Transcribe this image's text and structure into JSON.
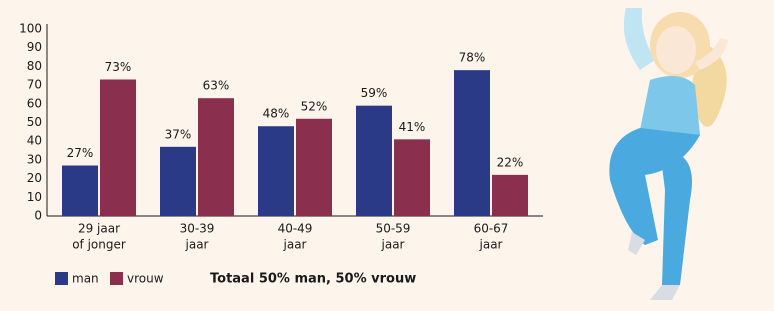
{
  "chart_data": {
    "type": "bar",
    "categories": [
      [
        "29 jaar",
        "of jonger"
      ],
      [
        "30-39",
        "jaar"
      ],
      [
        "40-49",
        "jaar"
      ],
      [
        "50-59",
        "jaar"
      ],
      [
        "60-67",
        "jaar"
      ]
    ],
    "series": [
      {
        "name": "man",
        "color": "#2b3a86",
        "values": [
          27,
          37,
          48,
          59,
          78
        ],
        "value_labels": [
          "27%",
          "37%",
          "48%",
          "59%",
          "78%"
        ]
      },
      {
        "name": "vrouw",
        "color": "#8b2f4e",
        "values": [
          73,
          63,
          52,
          41,
          22
        ],
        "value_labels": [
          "73%",
          "63%",
          "52%",
          "41%",
          "22%"
        ]
      }
    ],
    "ylim": [
      0,
      100
    ],
    "yticks": [
      0,
      10,
      20,
      30,
      40,
      50,
      60,
      70,
      80,
      90,
      100
    ],
    "grid": false,
    "annotation": "Totaal 50% man, 50% vrouw"
  }
}
